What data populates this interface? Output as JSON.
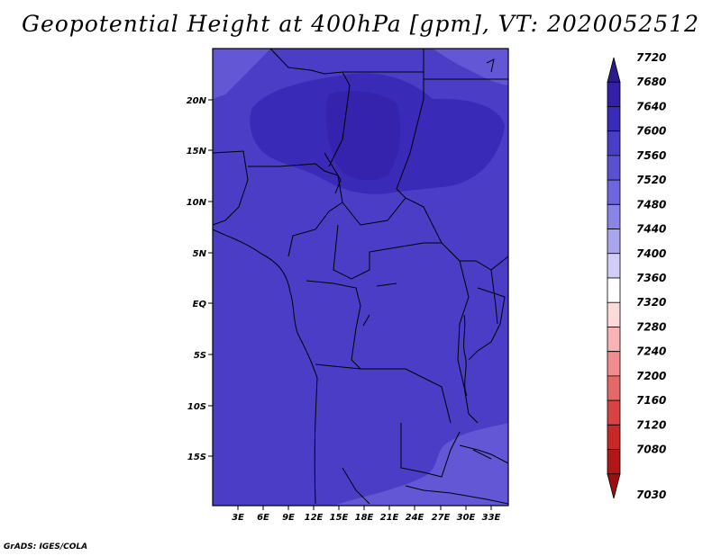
{
  "title": "Geopotential Height at 400hPa [gpm], VT: 2020052512",
  "credit": "GrADS: IGES/COLA",
  "map": {
    "lat_labels": [
      "20N",
      "15N",
      "10N",
      "5N",
      "EQ",
      "5S",
      "10S",
      "15S"
    ],
    "lon_labels": [
      "3E",
      "6E",
      "9E",
      "12E",
      "15E",
      "18E",
      "21E",
      "24E",
      "27E",
      "30E",
      "33E"
    ],
    "background_color": "#4a3ec6"
  },
  "colorbar": {
    "levels": [
      7720,
      7680,
      7640,
      7600,
      7560,
      7520,
      7480,
      7440,
      7400,
      7360,
      7320,
      7280,
      7240,
      7200,
      7160,
      7120,
      7080,
      7030
    ],
    "colors": [
      "#2a1a8e",
      "#3220a6",
      "#3a2ab8",
      "#4a3ec6",
      "#5a50d2",
      "#6e66dc",
      "#8a84e6",
      "#aaa6ee",
      "#d0ceF6",
      "#ffffff",
      "#fcdada",
      "#f8b4b4",
      "#f08c8c",
      "#e46868",
      "#d84444",
      "#c82828",
      "#b01818",
      "#9a1010"
    ]
  }
}
